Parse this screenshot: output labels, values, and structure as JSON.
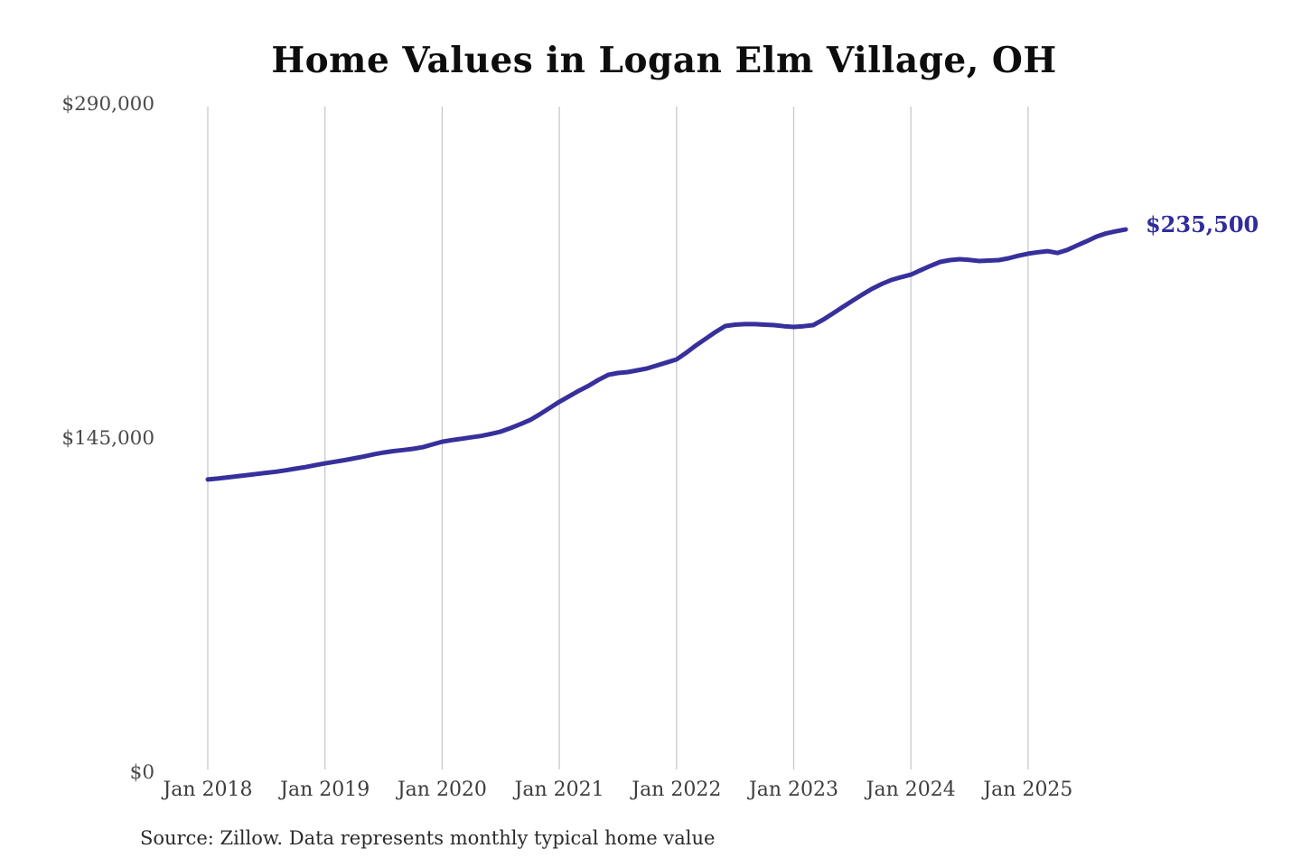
{
  "chart": {
    "title": "Home Values in Logan Elm Village, OH",
    "source": "Source: Zillow. Data represents monthly typical home value"
  },
  "chart_data": {
    "type": "line",
    "title": "Home Values in Logan Elm Village, OH",
    "xlabel": "",
    "ylabel": "",
    "ylim": [
      0,
      290000
    ],
    "grid": "vertical-year-gridlines",
    "legend_position": "none",
    "line_color": "#37309c",
    "gridline_color": "#c9c9c9",
    "tick_label_color": "#4a4a4a",
    "annotation": {
      "label": "$235,500",
      "value": 235500,
      "color": "#312c9c"
    },
    "yticks": [
      {
        "value": 0,
        "label": "$0"
      },
      {
        "value": 145000,
        "label": "$145,000"
      },
      {
        "value": 290000,
        "label": "$290,000"
      }
    ],
    "xticks": [
      "Jan 2018",
      "Jan 2019",
      "Jan 2020",
      "Jan 2021",
      "Jan 2022",
      "Jan 2023",
      "Jan 2024",
      "Jan 2025"
    ],
    "series_name": "Typical home value (monthly)",
    "start_month": "2018-01",
    "frequency": "monthly",
    "values": [
      127000,
      127400,
      127900,
      128400,
      128900,
      129400,
      129900,
      130400,
      131000,
      131700,
      132400,
      133200,
      134000,
      134700,
      135400,
      136200,
      137000,
      137900,
      138700,
      139300,
      139800,
      140300,
      141000,
      142200,
      143400,
      144100,
      144700,
      145300,
      145900,
      146800,
      147800,
      149300,
      151000,
      152800,
      155300,
      158000,
      160700,
      163100,
      165500,
      167700,
      170200,
      172400,
      173200,
      173600,
      174400,
      175200,
      176500,
      177800,
      179100,
      182000,
      185200,
      188100,
      191000,
      193600,
      194200,
      194400,
      194400,
      194200,
      194000,
      193500,
      193200,
      193500,
      194000,
      196300,
      199000,
      201800,
      204500,
      207200,
      209700,
      211800,
      213600,
      214800,
      215900,
      217800,
      219700,
      221400,
      222200,
      222600,
      222300,
      221800,
      222000,
      222200,
      223000,
      224100,
      225000,
      225600,
      226100,
      225300,
      226600,
      228500,
      230400,
      232400,
      233800,
      234700,
      235500
    ]
  }
}
